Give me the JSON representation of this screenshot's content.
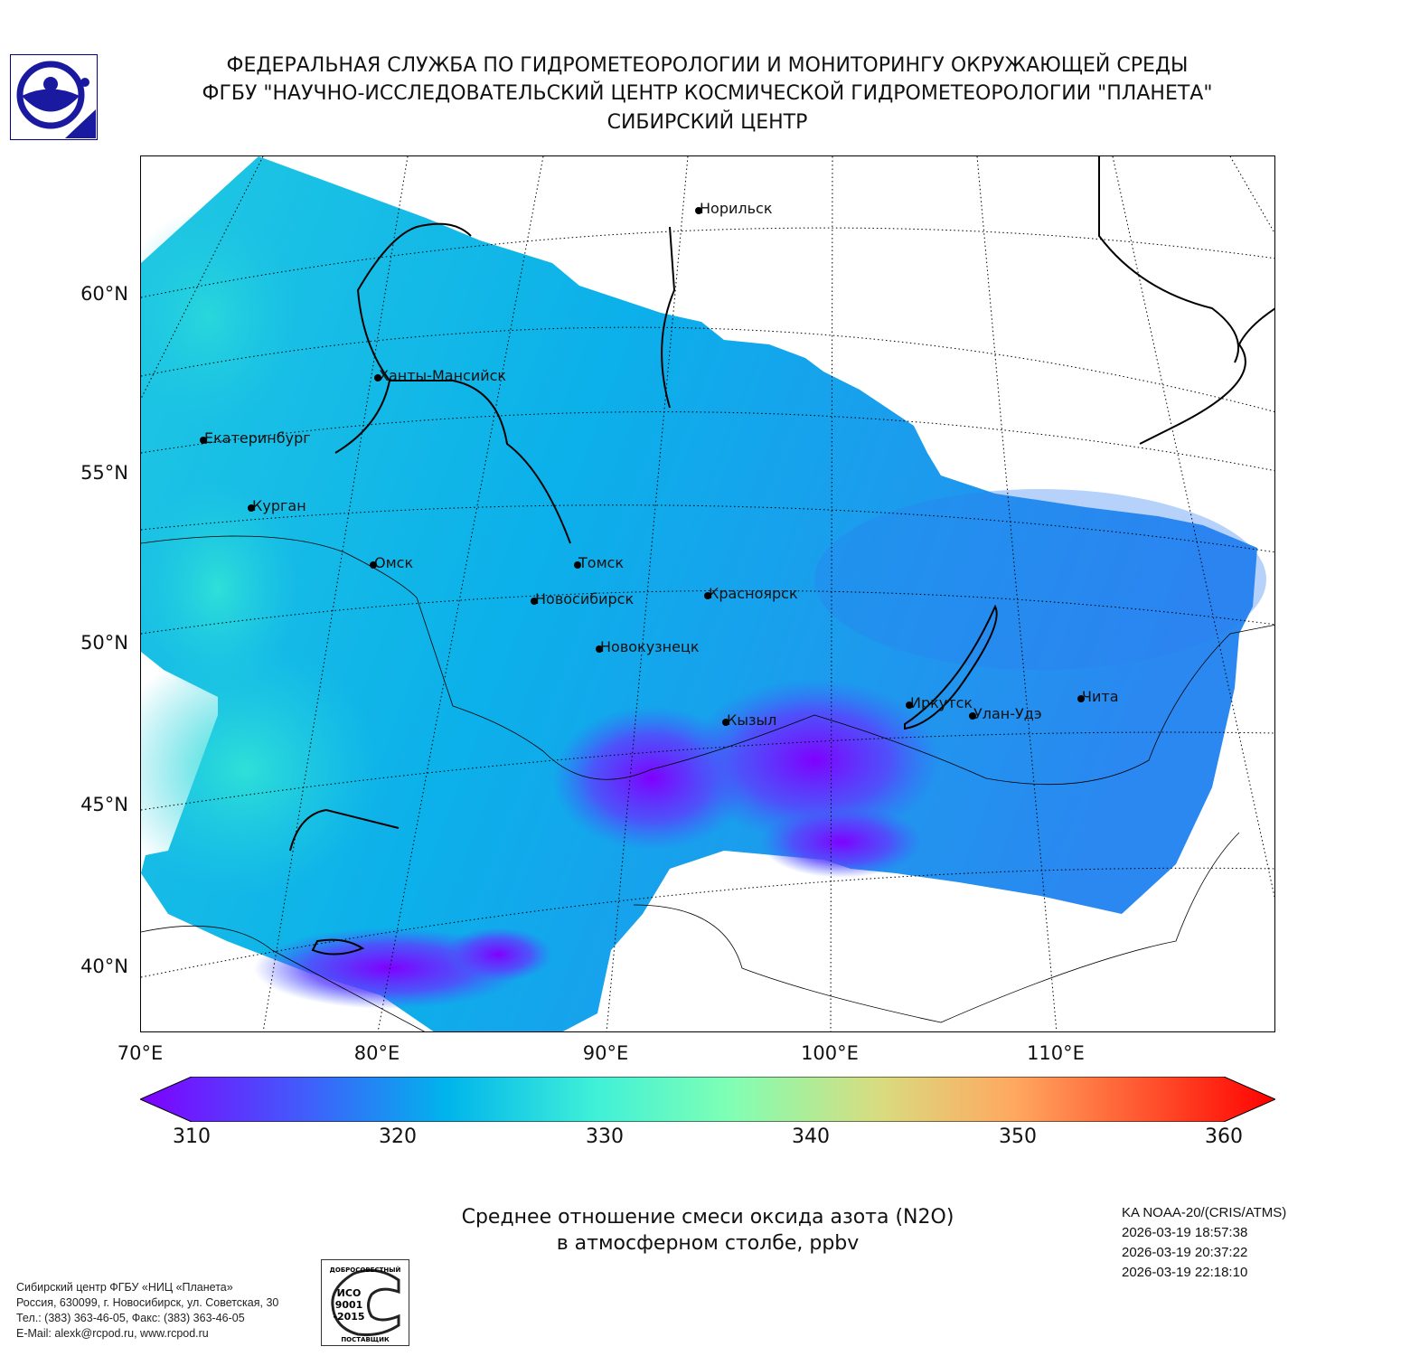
{
  "header": {
    "line1": "ФЕДЕРАЛЬНАЯ СЛУЖБА ПО ГИДРОМЕТЕОРОЛОГИИ И МОНИТОРИНГУ ОКРУЖАЮЩЕЙ СРЕДЫ",
    "line2": "ФГБУ \"НАУЧНО-ИССЛЕДОВАТЕЛЬСКИЙ ЦЕНТР КОСМИЧЕСКОЙ ГИДРОМЕТЕОРОЛОГИИ \"ПЛАНЕТА\"",
    "line3": "СИБИРСКИЙ ЦЕНТР"
  },
  "map": {
    "lat_labels": [
      "60°N",
      "55°N",
      "50°N",
      "45°N",
      "40°N"
    ],
    "lon_labels": [
      "70°E",
      "80°E",
      "90°E",
      "100°E",
      "110°E"
    ],
    "cities": [
      "Норильск",
      "Ханты-Мансийск",
      "Екатеринбург",
      "Курган",
      "Омск",
      "Томск",
      "Новосибирск",
      "Красноярск",
      "Новокузнецк",
      "Кызыл",
      "Иркутск",
      "Улан-Удэ",
      "Чита"
    ]
  },
  "colorbar": {
    "ticks": [
      "310",
      "320",
      "330",
      "340",
      "350",
      "360"
    ],
    "min": 310,
    "max": 360,
    "colors": [
      "#7f00ff",
      "#3f60fb",
      "#00b4ec",
      "#3ff0d8",
      "#80ffb4",
      "#c0eb8c",
      "#ffb360",
      "#ff5a30",
      "#ff0000"
    ]
  },
  "caption": {
    "line1": "Среднее отношение смеси оксида азота (N2O)",
    "line2": "в атмосферном столбе, ppbv"
  },
  "satellite": {
    "name": "KA NOAA-20/(CRIS/ATMS)",
    "times": [
      "2026-03-19 18:57:38",
      "2026-03-19 20:37:22",
      "2026-03-19 22:18:10"
    ]
  },
  "footer": {
    "lines": [
      "Сибирский центр ФГБУ «НИЦ «Планета»",
      "Россия, 630099, г. Новосибирск, ул. Советская, 30",
      "Тел.: (383) 363-46-05, Факс: (383) 363-46-05",
      "E-Mail: alexk@rcpod.ru, www.rcpod.ru"
    ],
    "iso_badge": [
      "ДОБРОСОВЕСТНЫЙ",
      "ИСО",
      "9001",
      "-2015",
      "ПОСТАВЩИК"
    ]
  }
}
